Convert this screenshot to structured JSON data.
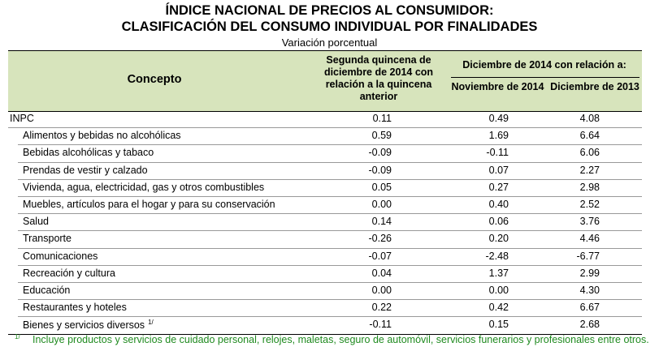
{
  "header": {
    "title_line1": "ÍNDICE NACIONAL DE PRECIOS AL CONSUMIDOR:",
    "title_line2": "CLASIFICACIÓN DEL CONSUMO INDIVIDUAL POR FINALIDADES",
    "subtitle": "Variación porcentual"
  },
  "table": {
    "columns": {
      "concept": "Concepto",
      "biweekly": "Segunda quincena de diciembre de 2014 con relación a la quincena anterior",
      "group": "Diciembre de 2014 con relación a:",
      "nov": "Noviembre de 2014",
      "dec": "Diciembre de 2013"
    },
    "rows": [
      [
        "INPC",
        "0.11",
        "0.49",
        "4.08"
      ],
      [
        "Alimentos y bebidas no alcohólicas",
        "0.59",
        "1.69",
        "6.64"
      ],
      [
        "Bebidas alcohólicas y tabaco",
        "-0.09",
        "-0.11",
        "6.06"
      ],
      [
        "Prendas de vestir y calzado",
        "-0.09",
        "0.07",
        "2.27"
      ],
      [
        "Vivienda, agua, electricidad, gas y otros combustibles",
        "0.05",
        "0.27",
        "2.98"
      ],
      [
        "Muebles, artículos para el hogar y para su conservación",
        "0.00",
        "0.40",
        "2.52"
      ],
      [
        "Salud",
        "0.14",
        "0.06",
        "3.76"
      ],
      [
        "Transporte",
        "-0.26",
        "0.20",
        "4.46"
      ],
      [
        "Comunicaciones",
        "-0.07",
        "-2.48",
        "-6.77"
      ],
      [
        "Recreación y cultura",
        "0.04",
        "1.37",
        "2.99"
      ],
      [
        "Educación",
        "0.00",
        "0.00",
        "4.30"
      ],
      [
        "Restaurantes y hoteles",
        "0.22",
        "0.42",
        "6.67"
      ],
      [
        "Bienes y servicios diversos",
        "-0.11",
        "0.15",
        "2.68"
      ]
    ],
    "row_note": "1/"
  },
  "footnote": {
    "mark": "1/",
    "text": "Incluye productos y servicios de cuidado personal, relojes, maletas, seguro de automóvil, servicios funerarios y profesionales entre otros."
  }
}
